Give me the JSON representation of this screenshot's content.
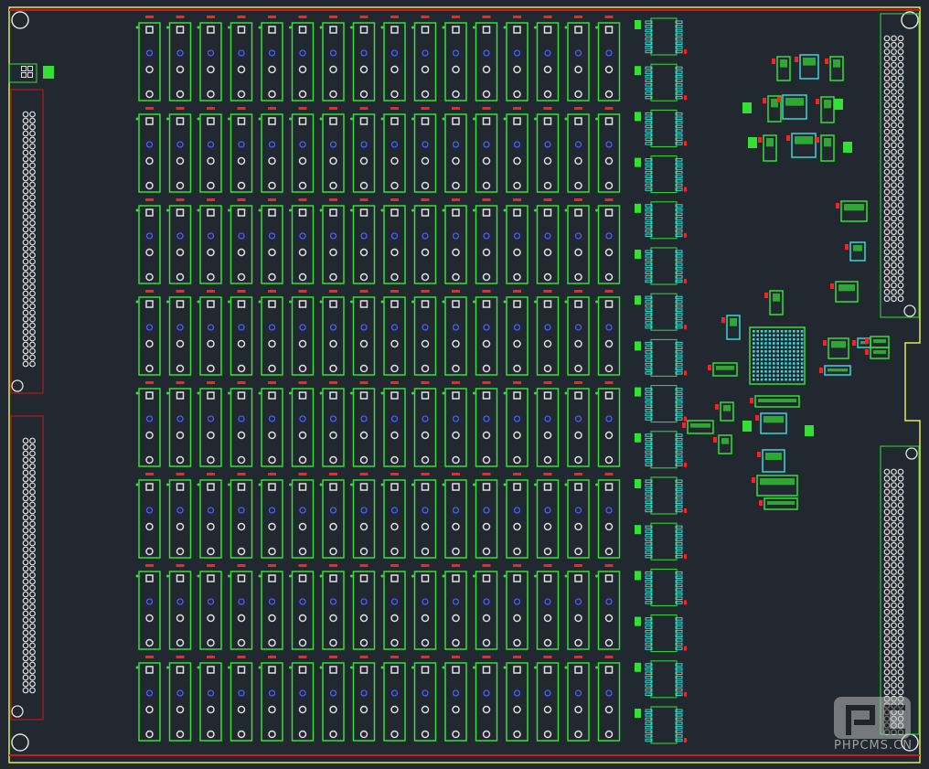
{
  "colors": {
    "background": "#212830",
    "board_outline": "#e8e84a",
    "keepout": "#d01818",
    "silkscreen": "#33e033",
    "pad": "#e0e0e0",
    "via": "#4b5cff",
    "smd_pad": "#3ad6d6",
    "label": "#ff2020"
  },
  "dip_grid": {
    "columns": 16,
    "rows": 8
  },
  "soic_column": {
    "count": 16
  },
  "watermark": {
    "text": "PHPCMS.CN",
    "logo": "PC"
  }
}
